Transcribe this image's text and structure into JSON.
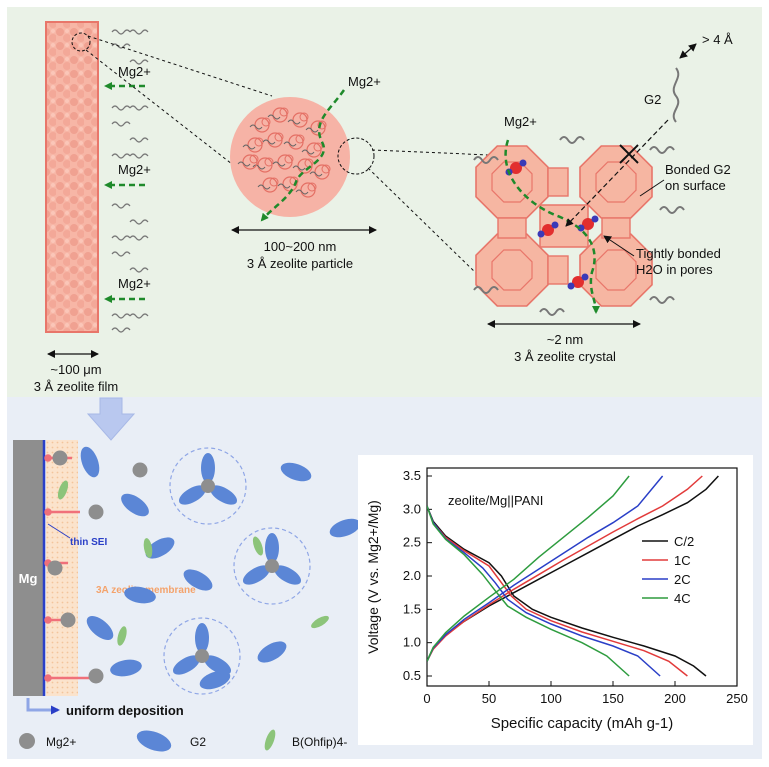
{
  "colors": {
    "top_bg": "#eaf2e7",
    "bottom_bg": "#e9eef6",
    "zeolite_fill": "#f7b9a8",
    "zeolite_edge": "#e8766a",
    "ion_arrow": "#1f8a2b",
    "mg_electrode": "#8e8e8e",
    "g2_blue": "#5b86d6",
    "anion_green": "#8cc47a",
    "sei_blue": "#2a3fc7",
    "membrane_orange": "#f9d8b5"
  },
  "top": {
    "film_ion_labels": [
      "Mg2+",
      "Mg2+",
      "Mg2+"
    ],
    "film_size": "~100 μm",
    "film_name": "3 Å zeolite film",
    "particle_ion_label": "Mg2+",
    "particle_size": "100~200 nm",
    "particle_name": "3 Å zeolite particle",
    "crystal_ion_label": "Mg2+",
    "g2_label": "G2",
    "g2_size": "> 4 Å",
    "bonded_g2_line1": "Bonded G2",
    "bonded_g2_line2": "on surface",
    "water_line1": "Tightly bonded",
    "water_line2": "H2O in pores",
    "crystal_size": "~2 nm",
    "crystal_name": "3 Å zeolite crystal"
  },
  "bottom_left": {
    "electrode_label": "Mg",
    "sei_label": "thin SEI",
    "membrane_label": "3A zeolite membrane",
    "deposition_label": "uniform deposition",
    "legend": [
      {
        "icon": "mg-ion",
        "label": "Mg2+"
      },
      {
        "icon": "g2-molecule",
        "label": "G2"
      },
      {
        "icon": "anion",
        "label": "B(Ohfip)4-"
      }
    ]
  },
  "chart_data": {
    "type": "line",
    "annotation": "zeolite/Mg||PANI",
    "xlabel": "Specific capacity (mAh g-1)",
    "ylabel": "Voltage (V vs. Mg2+/Mg)",
    "xlim": [
      0,
      250
    ],
    "ylim": [
      0.35,
      3.62
    ],
    "xticks": [
      0,
      50,
      100,
      150,
      200,
      250
    ],
    "yticks": [
      0.5,
      1.0,
      1.5,
      2.0,
      2.5,
      3.0,
      3.5
    ],
    "legend_position": "right",
    "series": [
      {
        "name": "C/2",
        "color": "#111111",
        "charge": [
          [
            0,
            0.72
          ],
          [
            5,
            0.92
          ],
          [
            15,
            1.12
          ],
          [
            30,
            1.32
          ],
          [
            50,
            1.55
          ],
          [
            70,
            1.75
          ],
          [
            90,
            1.95
          ],
          [
            110,
            2.15
          ],
          [
            130,
            2.35
          ],
          [
            150,
            2.55
          ],
          [
            170,
            2.75
          ],
          [
            190,
            2.92
          ],
          [
            210,
            3.1
          ],
          [
            225,
            3.3
          ],
          [
            235,
            3.5
          ]
        ],
        "discharge": [
          [
            0,
            3.05
          ],
          [
            5,
            2.82
          ],
          [
            15,
            2.6
          ],
          [
            30,
            2.4
          ],
          [
            50,
            2.2
          ],
          [
            60,
            2.0
          ],
          [
            70,
            1.7
          ],
          [
            85,
            1.5
          ],
          [
            100,
            1.38
          ],
          [
            125,
            1.22
          ],
          [
            150,
            1.08
          ],
          [
            175,
            0.95
          ],
          [
            200,
            0.8
          ],
          [
            215,
            0.65
          ],
          [
            225,
            0.5
          ]
        ]
      },
      {
        "name": "1C",
        "color": "#e23b3b",
        "charge": [
          [
            0,
            0.72
          ],
          [
            5,
            0.9
          ],
          [
            15,
            1.1
          ],
          [
            30,
            1.32
          ],
          [
            50,
            1.57
          ],
          [
            70,
            1.8
          ],
          [
            90,
            2.02
          ],
          [
            110,
            2.24
          ],
          [
            130,
            2.45
          ],
          [
            150,
            2.66
          ],
          [
            170,
            2.86
          ],
          [
            190,
            3.05
          ],
          [
            210,
            3.3
          ],
          [
            222,
            3.5
          ]
        ],
        "discharge": [
          [
            0,
            3.05
          ],
          [
            5,
            2.8
          ],
          [
            15,
            2.58
          ],
          [
            30,
            2.38
          ],
          [
            50,
            2.15
          ],
          [
            58,
            1.95
          ],
          [
            68,
            1.7
          ],
          [
            80,
            1.5
          ],
          [
            100,
            1.33
          ],
          [
            125,
            1.16
          ],
          [
            150,
            1.02
          ],
          [
            175,
            0.88
          ],
          [
            195,
            0.72
          ],
          [
            210,
            0.5
          ]
        ]
      },
      {
        "name": "2C",
        "color": "#2a3fc7",
        "charge": [
          [
            0,
            0.72
          ],
          [
            5,
            0.92
          ],
          [
            15,
            1.12
          ],
          [
            30,
            1.35
          ],
          [
            50,
            1.6
          ],
          [
            70,
            1.86
          ],
          [
            90,
            2.1
          ],
          [
            110,
            2.34
          ],
          [
            130,
            2.58
          ],
          [
            150,
            2.8
          ],
          [
            170,
            3.05
          ],
          [
            190,
            3.5
          ]
        ],
        "discharge": [
          [
            0,
            3.05
          ],
          [
            5,
            2.8
          ],
          [
            15,
            2.56
          ],
          [
            30,
            2.35
          ],
          [
            45,
            2.12
          ],
          [
            55,
            1.9
          ],
          [
            65,
            1.65
          ],
          [
            80,
            1.45
          ],
          [
            100,
            1.28
          ],
          [
            125,
            1.1
          ],
          [
            150,
            0.95
          ],
          [
            170,
            0.8
          ],
          [
            188,
            0.5
          ]
        ]
      },
      {
        "name": "4C",
        "color": "#2e9c3f",
        "charge": [
          [
            0,
            0.72
          ],
          [
            5,
            0.93
          ],
          [
            15,
            1.15
          ],
          [
            30,
            1.4
          ],
          [
            50,
            1.68
          ],
          [
            70,
            1.95
          ],
          [
            90,
            2.28
          ],
          [
            110,
            2.58
          ],
          [
            130,
            2.88
          ],
          [
            150,
            3.2
          ],
          [
            163,
            3.5
          ]
        ],
        "discharge": [
          [
            0,
            3.05
          ],
          [
            5,
            2.78
          ],
          [
            15,
            2.55
          ],
          [
            30,
            2.32
          ],
          [
            45,
            2.02
          ],
          [
            55,
            1.78
          ],
          [
            65,
            1.55
          ],
          [
            80,
            1.38
          ],
          [
            100,
            1.2
          ],
          [
            125,
            1.0
          ],
          [
            145,
            0.8
          ],
          [
            163,
            0.5
          ]
        ]
      }
    ]
  }
}
